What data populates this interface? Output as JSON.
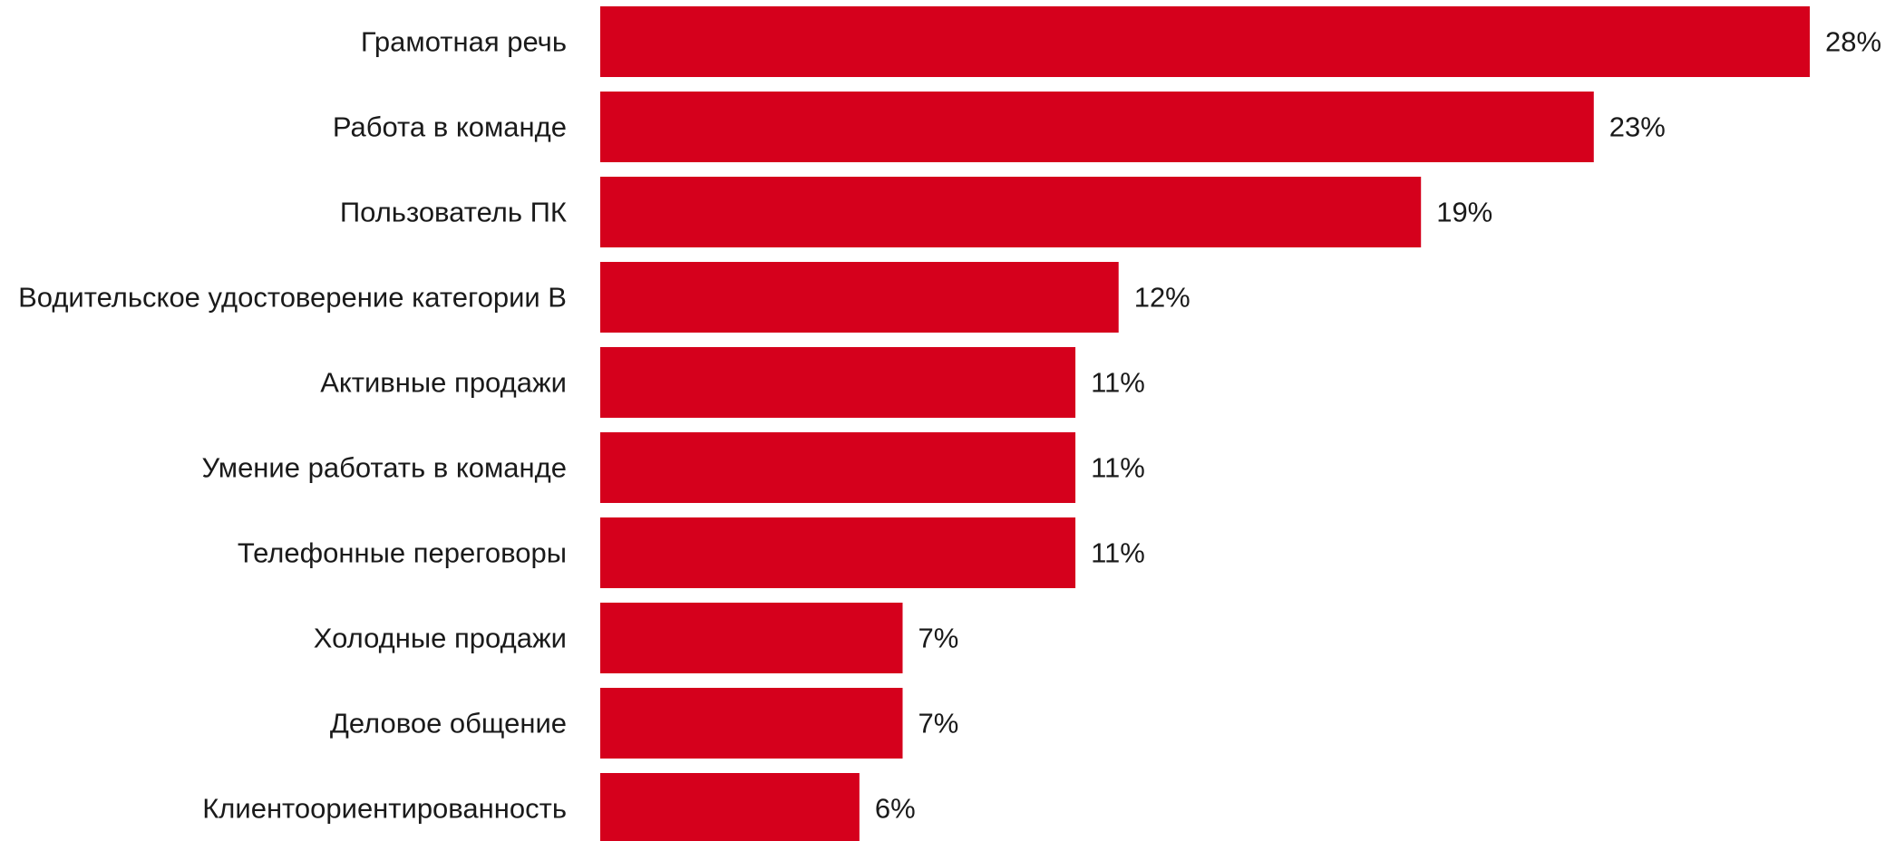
{
  "chart_data": {
    "type": "bar",
    "orientation": "horizontal",
    "title": "",
    "xlabel": "",
    "ylabel": "",
    "grid": false,
    "legend": "none",
    "bar_color": "#d5001c",
    "value_suffix": "%",
    "xlim": [
      0,
      28
    ],
    "categories": [
      "Грамотная речь",
      "Работа в команде",
      "Пользователь ПК",
      "Водительское удостоверение категории B",
      "Активные продажи",
      "Умение работать в команде",
      "Телефонные переговоры",
      "Холодные продажи",
      "Деловое общение",
      "Клиентоориентированность"
    ],
    "values": [
      28,
      23,
      19,
      12,
      11,
      11,
      11,
      7,
      7,
      6
    ],
    "data_labels": [
      "28%",
      "23%",
      "19%",
      "12%",
      "11%",
      "11%",
      "11%",
      "7%",
      "7%",
      "6%"
    ]
  }
}
